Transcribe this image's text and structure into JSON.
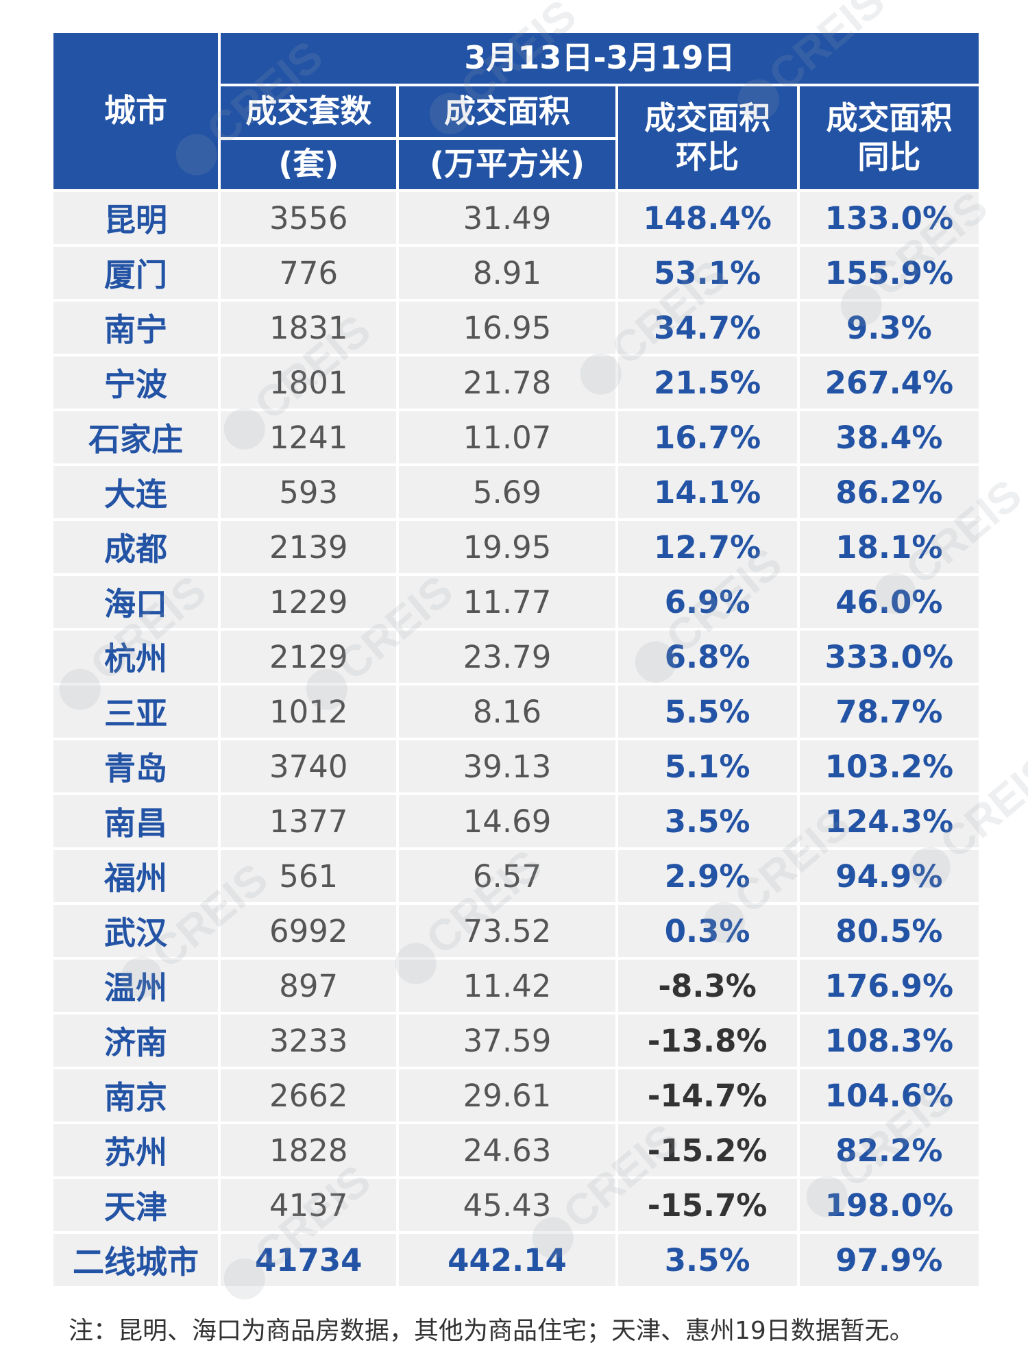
{
  "header": {
    "city_label": "城市",
    "date_range": "3月13日-3月19日",
    "columns": [
      {
        "line1": "成交套数",
        "line2": "(套)"
      },
      {
        "line1": "成交面积",
        "line2": "(万平方米)"
      },
      {
        "line1": "成交面积",
        "line2": "环比"
      },
      {
        "line1": "成交面积",
        "line2": "同比"
      }
    ]
  },
  "rows": [
    {
      "city": "昆明",
      "units": "3556",
      "area": "31.49",
      "mom": "148.4%",
      "yoy": "133.0%"
    },
    {
      "city": "厦门",
      "units": "776",
      "area": "8.91",
      "mom": "53.1%",
      "yoy": "155.9%"
    },
    {
      "city": "南宁",
      "units": "1831",
      "area": "16.95",
      "mom": "34.7%",
      "yoy": "9.3%"
    },
    {
      "city": "宁波",
      "units": "1801",
      "area": "21.78",
      "mom": "21.5%",
      "yoy": "267.4%"
    },
    {
      "city": "石家庄",
      "units": "1241",
      "area": "11.07",
      "mom": "16.7%",
      "yoy": "38.4%"
    },
    {
      "city": "大连",
      "units": "593",
      "area": "5.69",
      "mom": "14.1%",
      "yoy": "86.2%"
    },
    {
      "city": "成都",
      "units": "2139",
      "area": "19.95",
      "mom": "12.7%",
      "yoy": "18.1%"
    },
    {
      "city": "海口",
      "units": "1229",
      "area": "11.77",
      "mom": "6.9%",
      "yoy": "46.0%"
    },
    {
      "city": "杭州",
      "units": "2129",
      "area": "23.79",
      "mom": "6.8%",
      "yoy": "333.0%"
    },
    {
      "city": "三亚",
      "units": "1012",
      "area": "8.16",
      "mom": "5.5%",
      "yoy": "78.7%"
    },
    {
      "city": "青岛",
      "units": "3740",
      "area": "39.13",
      "mom": "5.1%",
      "yoy": "103.2%"
    },
    {
      "city": "南昌",
      "units": "1377",
      "area": "14.69",
      "mom": "3.5%",
      "yoy": "124.3%"
    },
    {
      "city": "福州",
      "units": "561",
      "area": "6.57",
      "mom": "2.9%",
      "yoy": "94.9%"
    },
    {
      "city": "武汉",
      "units": "6992",
      "area": "73.52",
      "mom": "0.3%",
      "yoy": "80.5%"
    },
    {
      "city": "温州",
      "units": "897",
      "area": "11.42",
      "mom": "-8.3%",
      "yoy": "176.9%"
    },
    {
      "city": "济南",
      "units": "3233",
      "area": "37.59",
      "mom": "-13.8%",
      "yoy": "108.3%"
    },
    {
      "city": "南京",
      "units": "2662",
      "area": "29.61",
      "mom": "-14.7%",
      "yoy": "104.6%"
    },
    {
      "city": "苏州",
      "units": "1828",
      "area": "24.63",
      "mom": "-15.2%",
      "yoy": "82.2%"
    },
    {
      "city": "天津",
      "units": "4137",
      "area": "45.43",
      "mom": "-15.7%",
      "yoy": "198.0%"
    }
  ],
  "total": {
    "city": "二线城市",
    "units": "41734",
    "area": "442.14",
    "mom": "3.5%",
    "yoy": "97.9%"
  },
  "note": "注：昆明、海口为商品房数据，其他为商品住宅；天津、惠州19日数据暂无。",
  "watermark_text": "CREIS",
  "colors": {
    "header_bg": "#2353a5",
    "accent_text": "#2353a5",
    "row_bg": "#f0f0f0"
  }
}
